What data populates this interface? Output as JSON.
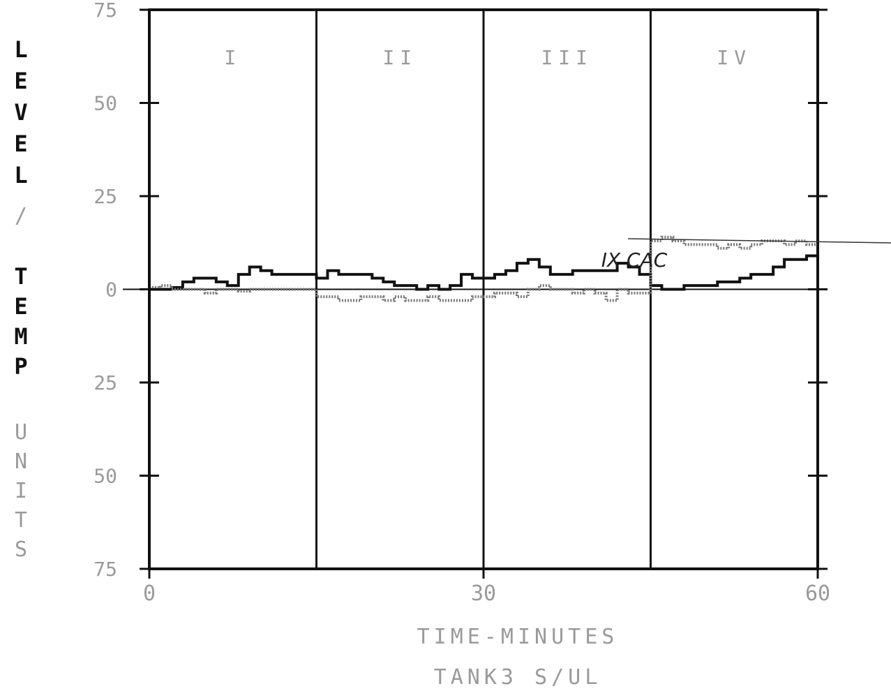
{
  "chart_data": {
    "type": "line",
    "xlabel": "TIME-MINUTES",
    "subtitle": "TANK3 S/UL",
    "ylabel_top": "LEVEL",
    "ylabel_sep": "/",
    "ylabel_mid": "TEMP",
    "ylabel_bottom": "UNITS",
    "xlim": [
      0,
      60
    ],
    "ylim": [
      -75,
      75
    ],
    "x_ticks": [
      {
        "value": 0,
        "label": "0"
      },
      {
        "value": 30,
        "label": "30"
      },
      {
        "value": 60,
        "label": "60"
      }
    ],
    "y_ticks": [
      {
        "value": 75,
        "label": "75"
      },
      {
        "value": 50,
        "label": "50"
      },
      {
        "value": 25,
        "label": "25"
      },
      {
        "value": 0,
        "label": "0"
      },
      {
        "value": -25,
        "label": "25"
      },
      {
        "value": -50,
        "label": "50"
      },
      {
        "value": -75,
        "label": "75"
      }
    ],
    "period_lines": [
      15,
      30,
      45
    ],
    "periods": [
      {
        "label": "I",
        "center": 7.5
      },
      {
        "label": "II",
        "center": 22.5
      },
      {
        "label": "III",
        "center": 37.5
      },
      {
        "label": "IV",
        "center": 52.5
      }
    ],
    "annotation": {
      "text": "IX CAC",
      "x": 39,
      "y": 8
    },
    "series": [
      {
        "style": "solid",
        "x": [
          0,
          1,
          2,
          3,
          4,
          5,
          6,
          7,
          8,
          9,
          10,
          11,
          12,
          13,
          14,
          15,
          16,
          17,
          18,
          19,
          20,
          21,
          22,
          23,
          24,
          25,
          26,
          27,
          28,
          29,
          30,
          31,
          32,
          33,
          34,
          35,
          36,
          37,
          38,
          39,
          40,
          41,
          42,
          43,
          44,
          45,
          46,
          47,
          48,
          49,
          50,
          51,
          52,
          53,
          54,
          55,
          56,
          57,
          58,
          59,
          60
        ],
        "values": [
          0,
          0,
          0.5,
          2,
          3,
          3,
          2,
          1,
          4,
          6,
          5,
          4,
          4,
          4,
          4,
          3,
          5,
          4,
          4,
          4,
          3,
          2,
          1,
          1,
          0,
          1,
          0,
          1,
          4,
          3,
          3,
          4,
          5,
          7,
          8,
          6,
          4,
          4,
          5,
          5,
          5,
          5,
          7,
          6,
          4,
          1,
          0,
          0,
          1,
          1,
          1,
          2,
          2,
          3,
          4,
          4,
          6,
          8,
          8,
          9,
          10
        ]
      },
      {
        "style": "dotted",
        "x": [
          0,
          1,
          2,
          3,
          4,
          5,
          6,
          7,
          8,
          9,
          10,
          11,
          12,
          13,
          14,
          15,
          16,
          17,
          18,
          19,
          20,
          21,
          22,
          23,
          24,
          25,
          26,
          27,
          28,
          29,
          30,
          31,
          32,
          33,
          34,
          35,
          36,
          37,
          38,
          39,
          40,
          41,
          42,
          43,
          44,
          45,
          46,
          47,
          48,
          49,
          50,
          51,
          52,
          53,
          54,
          55,
          56,
          57,
          58,
          59,
          60
        ],
        "values": [
          0.5,
          1,
          0,
          0,
          0,
          -1,
          0,
          0,
          -0.5,
          0,
          0,
          0,
          0,
          0,
          0,
          -2,
          -2,
          -3,
          -3,
          -2,
          -2,
          -3,
          -2,
          -3,
          -3,
          -2,
          -3,
          -3,
          -3,
          -2,
          -2,
          -1,
          -1,
          -2,
          0,
          1,
          0,
          0,
          -1,
          0,
          -1,
          -3,
          0,
          -1,
          -1,
          13,
          14,
          13,
          12,
          12,
          12,
          11,
          12,
          11,
          12,
          13,
          13,
          12,
          13,
          12,
          13
        ]
      }
    ]
  }
}
